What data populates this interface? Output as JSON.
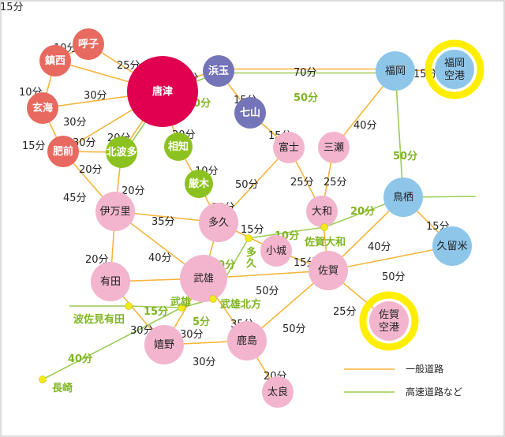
{
  "colors": {
    "road": "#f5b53c",
    "expressway": "#9ccc55",
    "karatsu": "#e0004f",
    "red": "#e8695f",
    "purple": "#7474b8",
    "green": "#8cc21f",
    "pink": "#f2b5cd",
    "blue": "#8ec6ea",
    "airport_ring": "#ffee00",
    "junction": "#f2ea1a"
  },
  "nodes": {
    "yobuko": {
      "label": "呼子",
      "group": "red"
    },
    "chinzei": {
      "label": "鎮西",
      "group": "red"
    },
    "genkai": {
      "label": "玄海",
      "group": "red"
    },
    "hizen": {
      "label": "肥前",
      "group": "red"
    },
    "karatsu": {
      "label": "唐津",
      "group": "karatsu"
    },
    "hamatama": {
      "label": "浜玉",
      "group": "purple"
    },
    "nanayama": {
      "label": "七山",
      "group": "purple"
    },
    "kitahata": {
      "label": "北波多",
      "group": "green"
    },
    "ouchi": {
      "label": "相知",
      "group": "green"
    },
    "kyuragi": {
      "label": "厳木",
      "group": "green"
    },
    "imari": {
      "label": "伊万里",
      "group": "pink"
    },
    "taku": {
      "label": "多久",
      "group": "pink"
    },
    "fuji": {
      "label": "富士",
      "group": "pink"
    },
    "mitsuse": {
      "label": "三瀬",
      "group": "pink"
    },
    "yamato": {
      "label": "大和",
      "group": "pink"
    },
    "ogi": {
      "label": "小城",
      "group": "pink"
    },
    "saga": {
      "label": "佐賀",
      "group": "pink"
    },
    "takeo": {
      "label": "武雄",
      "group": "pink"
    },
    "arita": {
      "label": "有田",
      "group": "pink"
    },
    "ureshino": {
      "label": "嬉野",
      "group": "pink"
    },
    "kashima": {
      "label": "鹿島",
      "group": "pink"
    },
    "tara": {
      "label": "太良",
      "group": "pink"
    },
    "fukuoka": {
      "label": "福岡",
      "group": "blue"
    },
    "fukuoka_airport": {
      "label": "福岡\n空港",
      "group": "blue",
      "airport": true
    },
    "tosu": {
      "label": "鳥栖",
      "group": "blue"
    },
    "kurume": {
      "label": "久留米",
      "group": "blue"
    },
    "saga_airport": {
      "label": "佐賀\n空港",
      "group": "pink",
      "airport": true
    }
  },
  "edges": [
    {
      "from": "yobuko",
      "to": "chinzei",
      "time": "10分",
      "type": "road"
    },
    {
      "from": "yobuko",
      "to": "karatsu",
      "time": "25分",
      "type": "road"
    },
    {
      "from": "chinzei",
      "to": "karatsu",
      "time": "30分",
      "type": "road"
    },
    {
      "from": "chinzei",
      "to": "genkai",
      "time": "10分",
      "type": "road"
    },
    {
      "from": "genkai",
      "to": "karatsu",
      "time": "30分",
      "type": "road"
    },
    {
      "from": "genkai",
      "to": "hizen",
      "time": "15分",
      "type": "road"
    },
    {
      "from": "hizen",
      "to": "karatsu",
      "time": "30分",
      "type": "road"
    },
    {
      "from": "hizen",
      "to": "kitahata",
      "time": "20分",
      "type": "road"
    },
    {
      "from": "hizen",
      "to": "imari",
      "time": "45分",
      "type": "road"
    },
    {
      "from": "kitahata",
      "to": "karatsu",
      "time": "20分",
      "type": "road"
    },
    {
      "from": "kitahata",
      "to": "imari",
      "time": "20分",
      "type": "road"
    },
    {
      "from": "karatsu",
      "to": "ouchi",
      "time": "20分",
      "type": "road"
    },
    {
      "from": "ouchi",
      "to": "kyuragi",
      "time": "10分",
      "type": "road"
    },
    {
      "from": "kyuragi",
      "to": "taku",
      "time": "10分",
      "type": "road"
    },
    {
      "from": "karatsu",
      "to": "hamatama",
      "time": "15分",
      "type": "road"
    },
    {
      "from": "karatsu",
      "to": "hamatama",
      "time": "10分",
      "type": "expressway"
    },
    {
      "from": "hamatama",
      "to": "fukuoka",
      "time": "70分",
      "type": "road"
    },
    {
      "from": "hamatama",
      "to": "fukuoka",
      "time": "50分",
      "type": "expressway"
    },
    {
      "from": "hamatama",
      "to": "nanayama",
      "time": "15分",
      "type": "road"
    },
    {
      "from": "nanayama",
      "to": "fuji",
      "time": "15分",
      "type": "road"
    },
    {
      "from": "fuji",
      "to": "taku",
      "time": "50分",
      "type": "road"
    },
    {
      "from": "fuji",
      "to": "yamato",
      "time": "25分",
      "type": "road"
    },
    {
      "from": "mitsuse",
      "to": "yamato",
      "time": "25分",
      "type": "road"
    },
    {
      "from": "mitsuse",
      "to": "fukuoka",
      "time": "40分",
      "type": "road"
    },
    {
      "from": "fukuoka",
      "to": "tosu",
      "time": "50分",
      "type": "expressway"
    },
    {
      "from": "fukuoka",
      "to": "fukuoka_airport",
      "time": "15分",
      "type": "road"
    },
    {
      "from": "tosu",
      "to": "kurume",
      "time": "15分",
      "type": "road"
    },
    {
      "from": "tosu",
      "to": "saga",
      "time": "40分",
      "type": "road"
    },
    {
      "from": "kurume",
      "to": "saga",
      "time": "50分",
      "type": "road"
    },
    {
      "from": "imari",
      "to": "taku",
      "time": "35分",
      "type": "road"
    },
    {
      "from": "imari",
      "to": "takeo",
      "time": "40分",
      "type": "road"
    },
    {
      "from": "imari",
      "to": "arita",
      "time": "20分",
      "type": "road"
    },
    {
      "from": "taku",
      "to": "ogi",
      "time": "15分",
      "type": "road"
    },
    {
      "from": "ogi",
      "to": "saga",
      "time": "15分",
      "type": "road"
    },
    {
      "from": "yamato",
      "to": "saga",
      "time": "",
      "type": "road"
    },
    {
      "from": "taku",
      "to": "takeo",
      "time": "",
      "type": "road"
    },
    {
      "from": "takeo",
      "to": "saga",
      "time": "50分",
      "type": "road"
    },
    {
      "from": "arita",
      "to": "takeo",
      "time": "",
      "type": "road"
    },
    {
      "from": "arita",
      "to": "ureshino",
      "time": "30分",
      "type": "road"
    },
    {
      "from": "takeo",
      "to": "ureshino",
      "time": "30分",
      "type": "road"
    },
    {
      "from": "takeo",
      "to": "kashima",
      "time": "35分",
      "type": "road"
    },
    {
      "from": "ureshino",
      "to": "kashima",
      "time": "30分",
      "type": "road"
    },
    {
      "from": "kashima",
      "to": "saga",
      "time": "50分",
      "type": "road"
    },
    {
      "from": "kashima",
      "to": "tara",
      "time": "20分",
      "type": "road"
    },
    {
      "from": "saga",
      "to": "saga_airport",
      "time": "25分",
      "type": "road"
    }
  ],
  "junctions": {
    "taku_ic": {
      "label": "多久"
    },
    "saga_yamato": {
      "label": "佐賀大和"
    },
    "takeo_kitagata": {
      "label": "武雄北方"
    },
    "takeo_ic": {
      "label": "武雄"
    },
    "hasami_arita": {
      "label": "波佐見有田"
    },
    "nagasaki": {
      "label": "長崎"
    }
  },
  "expressway_segments": [
    {
      "from": "nagasaki",
      "to": "takeo_ic",
      "time": "40分"
    },
    {
      "from": "hasami_arita",
      "to": "takeo_ic",
      "time": "15分"
    },
    {
      "from": "takeo_ic",
      "to": "takeo_kitagata",
      "time": "5分"
    },
    {
      "from": "takeo_kitagata",
      "to": "taku_ic",
      "time": "10分"
    },
    {
      "from": "taku_ic",
      "to": "saga_yamato",
      "time": "10分"
    },
    {
      "from": "saga_yamato",
      "to": "tosu",
      "time": "20分"
    }
  ],
  "taku_ic_time": "15分",
  "legend": {
    "road": "一般道路",
    "expressway": "高速道路など"
  }
}
